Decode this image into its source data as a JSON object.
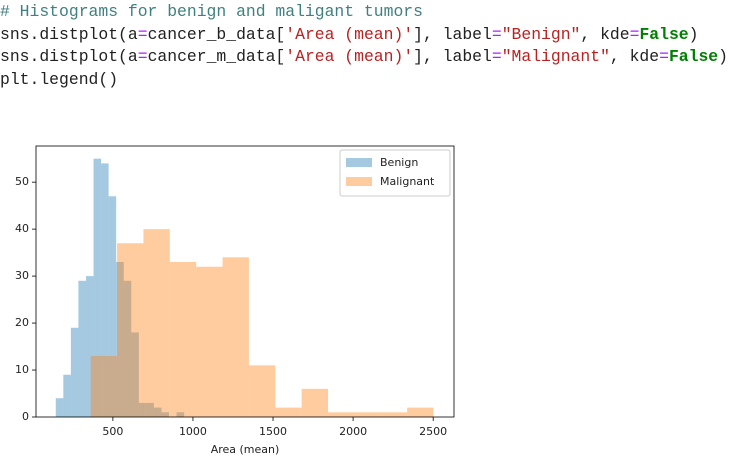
{
  "code": {
    "lines": [
      [
        "# Histograms for benign and maligant tumors"
      ],
      [
        "sns.distplot(a",
        "=",
        "cancer_b_data[",
        "'Area (mean)'",
        "], label",
        "=",
        "\"Benign\"",
        ", kde",
        "=",
        "False",
        ")"
      ],
      [
        "sns.distplot(a",
        "=",
        "cancer_m_data[",
        "'Area (mean)'",
        "], label",
        "=",
        "\"Malignant\"",
        ", kde",
        "=",
        "False",
        ")"
      ],
      [
        "plt.legend()"
      ]
    ]
  },
  "chart_data": {
    "type": "histogram",
    "x_label": "Area (mean)",
    "xlim": [
      20,
      2630
    ],
    "xticks": [
      500,
      1000,
      1500,
      2000,
      2500
    ],
    "ylim": [
      0,
      57.7
    ],
    "yticks": [
      0,
      10,
      20,
      30,
      40,
      50
    ],
    "legend": "upper right",
    "opacity": 0.4,
    "series": [
      {
        "name": "Benign",
        "color": "#1f77b4",
        "bins": [
          143.5,
          190.64,
          237.78,
          284.92,
          332.06,
          379.2,
          426.34,
          473.48,
          520.62,
          567.76,
          614.9,
          662.04,
          709.18,
          756.32,
          803.46,
          850.6,
          897.74,
          944.88,
          992.0
        ],
        "values": [
          4,
          9,
          19,
          29,
          30,
          55,
          54,
          47,
          33,
          29,
          18,
          3,
          3,
          2,
          1,
          0,
          1,
          0
        ]
      },
      {
        "name": "Malignant",
        "color": "#ff7f0e",
        "bins": [
          361.6,
          526.25,
          690.9,
          855.55,
          1020.2,
          1184.85,
          1349.5,
          1514.15,
          1678.8,
          1843.45,
          2008.1,
          2172.75,
          2337.4,
          2501.0
        ],
        "values": [
          13,
          37,
          40,
          33,
          32,
          34,
          11,
          2,
          6,
          1,
          1,
          1,
          2
        ]
      }
    ]
  }
}
